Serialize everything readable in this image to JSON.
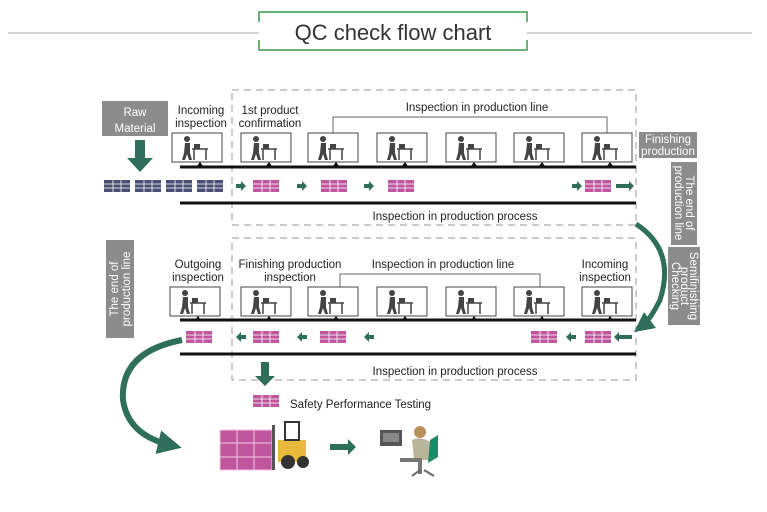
{
  "title": "QC check flow chart",
  "colors": {
    "accent_green": "#2e6e5a",
    "title_border": "#3b9a4a",
    "grey_box": "#8c8c8c",
    "pallet_pink": "#c0579e",
    "pallet_blue": "#4a4f73"
  },
  "top": {
    "raw_material": [
      "Raw",
      "Material"
    ],
    "incoming": [
      "Incoming",
      "inspection"
    ],
    "first_product": [
      "1st product",
      "confirmation"
    ],
    "line_label": "Inspection in production line",
    "process_label": "Inspection in production process"
  },
  "right": {
    "finishing": [
      "Finishing",
      "production"
    ],
    "end_line": [
      "The end of",
      "production line"
    ],
    "semifinishing": [
      "Semifinishing",
      "product",
      "Checking"
    ]
  },
  "bottom": {
    "end_line": [
      "The end of",
      "production line"
    ],
    "outgoing": [
      "Outgoing",
      "inspection"
    ],
    "finishing_inspection": [
      "Finishing production",
      "inspection"
    ],
    "line_label": "Inspection in production line",
    "incoming": [
      "Incoming",
      "inspection"
    ],
    "process_label": "Inspection in production process",
    "safety": "Safety Performance Testing"
  },
  "icons": {
    "station": "worker-at-bench-icon",
    "pallet": "pallet-icon",
    "forklift": "forklift-icon",
    "operator": "computer-operator-icon"
  }
}
